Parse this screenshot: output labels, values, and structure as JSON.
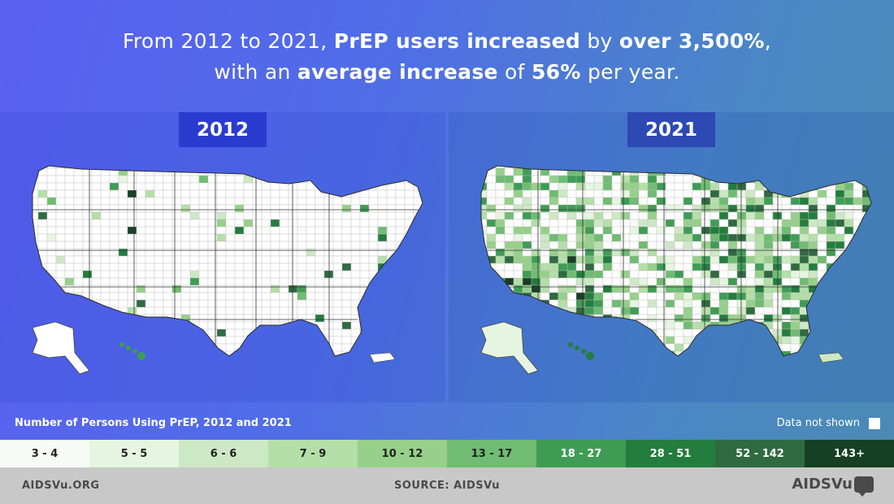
{
  "headline": {
    "line1_pre": "From 2012 to 2021, ",
    "line1_bold1": "PrEP users increased",
    "line1_mid": " by ",
    "line1_bold2": "over 3,500%",
    "line1_end": ",",
    "line2_pre": "with an ",
    "line2_bold1": "average increase",
    "line2_mid": " of ",
    "line2_bold2": "56%",
    "line2_end": " per year."
  },
  "maps": [
    {
      "year": "2012",
      "shading": "sparse"
    },
    {
      "year": "2021",
      "shading": "dense"
    }
  ],
  "legend": {
    "title": "Number of Persons Using PrEP, 2012 and 2021",
    "not_shown_label": "Data not shown",
    "not_shown_color": "#ffffff",
    "bins": [
      {
        "label": "3 - 4",
        "color": "#f7fbf5",
        "text_color": "#222222"
      },
      {
        "label": "5 - 5",
        "color": "#e6f5e0",
        "text_color": "#222222"
      },
      {
        "label": "6 - 6",
        "color": "#cde8c5",
        "text_color": "#222222"
      },
      {
        "label": "7 - 9",
        "color": "#b4dfa8",
        "text_color": "#222222"
      },
      {
        "label": "10 - 12",
        "color": "#96d08a",
        "text_color": "#222222"
      },
      {
        "label": "13 - 17",
        "color": "#6fbc72",
        "text_color": "#222222"
      },
      {
        "label": "18 - 27",
        "color": "#3f9c54",
        "text_color": "#ffffff"
      },
      {
        "label": "28 - 51",
        "color": "#237d3e",
        "text_color": "#ffffff"
      },
      {
        "label": "52 - 142",
        "color": "#2f6a40",
        "text_color": "#ffffff"
      },
      {
        "label": "143+",
        "color": "#173f24",
        "text_color": "#ffffff"
      }
    ]
  },
  "footer": {
    "left": "AIDSVu.ORG",
    "source": "SOURCE: AIDSVu",
    "logo_text": "AIDSVu"
  }
}
